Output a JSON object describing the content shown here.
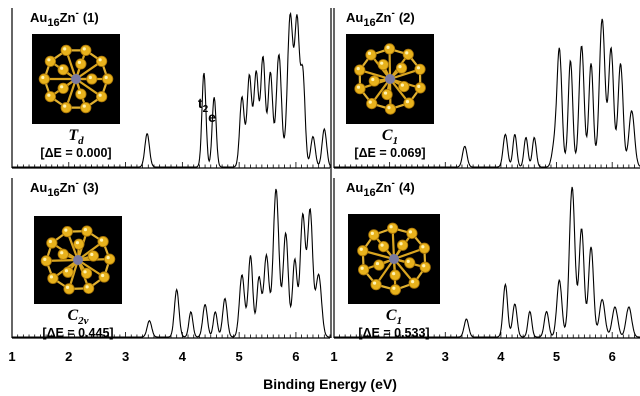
{
  "figure": {
    "xlabel": "Binding Energy (eV)"
  },
  "chart_data": [
    {
      "type": "line",
      "cluster": {
        "prefix": "Au",
        "count": "16",
        "dopant": "Zn",
        "charge": "-",
        "id": "(1)"
      },
      "symmetry": {
        "letter": "T",
        "sub": "d"
      },
      "energy": "[ΔE = 0.000]",
      "annotations": [
        {
          "main": "t",
          "sub": "2",
          "x": 4.38
        },
        {
          "main": "e",
          "x": 4.56
        }
      ],
      "xlim": [
        1,
        6.6
      ],
      "x_ticks": [
        "1",
        "2",
        "3",
        "4",
        "5",
        "6"
      ],
      "peaks": [
        [
          3.38,
          0.22,
          0.04
        ],
        [
          4.38,
          0.62,
          0.035
        ],
        [
          4.56,
          0.46,
          0.035
        ],
        [
          5.05,
          0.46,
          0.04
        ],
        [
          5.18,
          0.6,
          0.04
        ],
        [
          5.3,
          0.62,
          0.04
        ],
        [
          5.42,
          0.72,
          0.04
        ],
        [
          5.55,
          0.62,
          0.04
        ],
        [
          5.7,
          0.74,
          0.045
        ],
        [
          5.9,
          1.0,
          0.05
        ],
        [
          6.02,
          0.92,
          0.04
        ],
        [
          6.12,
          0.62,
          0.04
        ],
        [
          6.3,
          0.2,
          0.04
        ],
        [
          6.5,
          0.25,
          0.04
        ]
      ]
    },
    {
      "type": "line",
      "cluster": {
        "prefix": "Au",
        "count": "16",
        "dopant": "Zn",
        "charge": "-",
        "id": "(2)"
      },
      "symmetry": {
        "letter": "C",
        "sub": "1"
      },
      "energy": "[ΔE = 0.069]",
      "xlim": [
        1,
        6.5
      ],
      "x_ticks": [
        "1",
        "2",
        "3",
        "4",
        "5",
        "6"
      ],
      "peaks": [
        [
          3.35,
          0.14,
          0.04
        ],
        [
          4.08,
          0.22,
          0.04
        ],
        [
          4.25,
          0.22,
          0.035
        ],
        [
          4.45,
          0.2,
          0.035
        ],
        [
          4.6,
          0.2,
          0.035
        ],
        [
          4.95,
          0.12,
          0.04
        ],
        [
          5.05,
          0.8,
          0.045
        ],
        [
          5.25,
          0.72,
          0.04
        ],
        [
          5.45,
          0.82,
          0.045
        ],
        [
          5.62,
          0.7,
          0.04
        ],
        [
          5.82,
          1.0,
          0.05
        ],
        [
          5.98,
          0.8,
          0.045
        ],
        [
          6.15,
          0.7,
          0.045
        ],
        [
          6.35,
          0.38,
          0.05
        ]
      ]
    },
    {
      "type": "line",
      "cluster": {
        "prefix": "Au",
        "count": "16",
        "dopant": "Zn",
        "charge": "-",
        "id": "(3)"
      },
      "symmetry": {
        "letter": "C",
        "sub": "2v"
      },
      "energy": "[ΔE = 0.445]",
      "xlim": [
        1,
        6.6
      ],
      "x_ticks": [
        "1",
        "2",
        "3",
        "4",
        "5",
        "6"
      ],
      "peaks": [
        [
          3.42,
          0.11,
          0.04
        ],
        [
          3.9,
          0.32,
          0.04
        ],
        [
          4.15,
          0.17,
          0.035
        ],
        [
          4.4,
          0.22,
          0.04
        ],
        [
          4.58,
          0.17,
          0.035
        ],
        [
          4.75,
          0.26,
          0.04
        ],
        [
          5.05,
          0.42,
          0.045
        ],
        [
          5.2,
          0.55,
          0.04
        ],
        [
          5.35,
          0.4,
          0.04
        ],
        [
          5.48,
          0.55,
          0.045
        ],
        [
          5.65,
          1.0,
          0.05
        ],
        [
          5.82,
          0.7,
          0.045
        ],
        [
          5.98,
          0.52,
          0.04
        ],
        [
          6.12,
          0.82,
          0.045
        ],
        [
          6.25,
          0.85,
          0.045
        ],
        [
          6.4,
          0.42,
          0.05
        ]
      ]
    },
    {
      "type": "line",
      "cluster": {
        "prefix": "Au",
        "count": "16",
        "dopant": "Zn",
        "charge": "-",
        "id": "(4)"
      },
      "symmetry": {
        "letter": "C",
        "sub": "1"
      },
      "energy": "[ΔE = 0.533]",
      "xlim": [
        1,
        6.5
      ],
      "x_ticks": [
        "1",
        "2",
        "3",
        "4",
        "5",
        "6"
      ],
      "peaks": [
        [
          3.38,
          0.12,
          0.04
        ],
        [
          4.08,
          0.35,
          0.04
        ],
        [
          4.25,
          0.22,
          0.04
        ],
        [
          4.52,
          0.17,
          0.035
        ],
        [
          4.82,
          0.17,
          0.04
        ],
        [
          5.05,
          0.38,
          0.045
        ],
        [
          5.28,
          1.0,
          0.05
        ],
        [
          5.45,
          0.72,
          0.045
        ],
        [
          5.62,
          0.6,
          0.045
        ],
        [
          5.82,
          0.25,
          0.05
        ],
        [
          6.05,
          0.2,
          0.05
        ],
        [
          6.3,
          0.2,
          0.05
        ]
      ]
    }
  ]
}
